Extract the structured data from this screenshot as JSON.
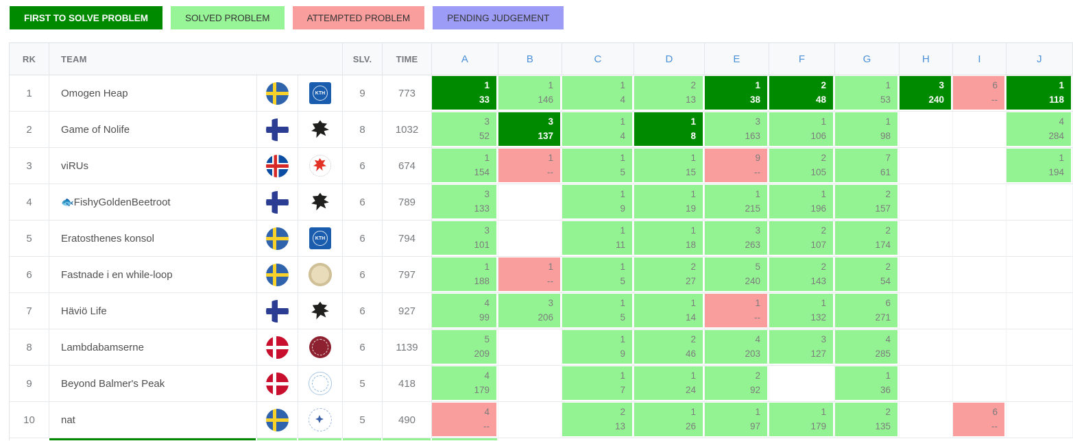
{
  "colors": {
    "first_to_solve": "#008a00",
    "solved": "#93f393",
    "attempted": "#fa9d9d",
    "pending": "#9c9cf6",
    "first_to_solve_text": "#ffffff",
    "cell_text": "#7c7c7c",
    "problem_header_text": "#4a90d9"
  },
  "legend": [
    {
      "label": "FIRST TO SOLVE PROBLEM",
      "type": "first",
      "bg": "#008a00",
      "fg": "#ffffff"
    },
    {
      "label": "SOLVED PROBLEM",
      "type": "solved",
      "bg": "#97f597",
      "fg": "#333333"
    },
    {
      "label": "ATTEMPTED PROBLEM",
      "type": "attempted",
      "bg": "#fa9d9d",
      "fg": "#333333"
    },
    {
      "label": "PENDING JUDGEMENT",
      "type": "pending",
      "bg": "#9c9cf6",
      "fg": "#333333"
    }
  ],
  "table": {
    "headers": {
      "rank": "RK",
      "team": "TEAM",
      "solved": "SLV.",
      "time": "TIME",
      "problems": [
        "A",
        "B",
        "C",
        "D",
        "E",
        "F",
        "G",
        "H",
        "I",
        "J"
      ]
    },
    "rows": [
      {
        "rank": "1",
        "team": "Omogen Heap",
        "flag": "sweden",
        "logo": "kth",
        "solved": "9",
        "time": "773",
        "cells": [
          {
            "problem": "A",
            "state": "first",
            "tries": "1",
            "time": "33"
          },
          {
            "problem": "B",
            "state": "solved",
            "tries": "1",
            "time": "146"
          },
          {
            "problem": "C",
            "state": "solved",
            "tries": "1",
            "time": "4"
          },
          {
            "problem": "D",
            "state": "solved",
            "tries": "2",
            "time": "13"
          },
          {
            "problem": "E",
            "state": "first",
            "tries": "1",
            "time": "38"
          },
          {
            "problem": "F",
            "state": "first",
            "tries": "2",
            "time": "48"
          },
          {
            "problem": "G",
            "state": "solved",
            "tries": "1",
            "time": "53"
          },
          {
            "problem": "H",
            "state": "first",
            "tries": "3",
            "time": "240"
          },
          {
            "problem": "I",
            "state": "attempted",
            "tries": "6",
            "time": "--"
          },
          {
            "problem": "J",
            "state": "first",
            "tries": "1",
            "time": "118"
          }
        ]
      },
      {
        "rank": "2",
        "team": "Game of Nolife",
        "flag": "finland",
        "logo": "black-bird",
        "solved": "8",
        "time": "1032",
        "cells": [
          {
            "problem": "A",
            "state": "solved",
            "tries": "3",
            "time": "52"
          },
          {
            "problem": "B",
            "state": "first",
            "tries": "3",
            "time": "137"
          },
          {
            "problem": "C",
            "state": "solved",
            "tries": "1",
            "time": "4"
          },
          {
            "problem": "D",
            "state": "first",
            "tries": "1",
            "time": "8"
          },
          {
            "problem": "E",
            "state": "solved",
            "tries": "3",
            "time": "163"
          },
          {
            "problem": "F",
            "state": "solved",
            "tries": "1",
            "time": "106"
          },
          {
            "problem": "G",
            "state": "solved",
            "tries": "1",
            "time": "98"
          },
          {
            "problem": "H",
            "state": "none"
          },
          {
            "problem": "I",
            "state": "none"
          },
          {
            "problem": "J",
            "state": "solved",
            "tries": "4",
            "time": "284"
          }
        ]
      },
      {
        "rank": "3",
        "team": "viRUs",
        "flag": "iceland",
        "logo": "red-seal",
        "solved": "6",
        "time": "674",
        "cells": [
          {
            "problem": "A",
            "state": "solved",
            "tries": "1",
            "time": "154"
          },
          {
            "problem": "B",
            "state": "attempted",
            "tries": "1",
            "time": "--"
          },
          {
            "problem": "C",
            "state": "solved",
            "tries": "1",
            "time": "5"
          },
          {
            "problem": "D",
            "state": "solved",
            "tries": "1",
            "time": "15"
          },
          {
            "problem": "E",
            "state": "attempted",
            "tries": "9",
            "time": "--"
          },
          {
            "problem": "F",
            "state": "solved",
            "tries": "2",
            "time": "105"
          },
          {
            "problem": "G",
            "state": "solved",
            "tries": "7",
            "time": "61"
          },
          {
            "problem": "H",
            "state": "none"
          },
          {
            "problem": "I",
            "state": "none"
          },
          {
            "problem": "J",
            "state": "solved",
            "tries": "1",
            "time": "194"
          }
        ]
      },
      {
        "rank": "4",
        "team": "🐟FishyGoldenBeetroot",
        "flag": "finland",
        "logo": "black-bird",
        "solved": "6",
        "time": "789",
        "cells": [
          {
            "problem": "A",
            "state": "solved",
            "tries": "3",
            "time": "133"
          },
          {
            "problem": "B",
            "state": "none"
          },
          {
            "problem": "C",
            "state": "solved",
            "tries": "1",
            "time": "9"
          },
          {
            "problem": "D",
            "state": "solved",
            "tries": "1",
            "time": "19"
          },
          {
            "problem": "E",
            "state": "solved",
            "tries": "1",
            "time": "215"
          },
          {
            "problem": "F",
            "state": "solved",
            "tries": "1",
            "time": "196"
          },
          {
            "problem": "G",
            "state": "solved",
            "tries": "2",
            "time": "157"
          },
          {
            "problem": "H",
            "state": "none"
          },
          {
            "problem": "I",
            "state": "none"
          },
          {
            "problem": "J",
            "state": "none"
          }
        ]
      },
      {
        "rank": "5",
        "team": "Eratosthenes konsol",
        "flag": "sweden",
        "logo": "kth",
        "solved": "6",
        "time": "794",
        "cells": [
          {
            "problem": "A",
            "state": "solved",
            "tries": "3",
            "time": "101"
          },
          {
            "problem": "B",
            "state": "none"
          },
          {
            "problem": "C",
            "state": "solved",
            "tries": "1",
            "time": "11"
          },
          {
            "problem": "D",
            "state": "solved",
            "tries": "1",
            "time": "18"
          },
          {
            "problem": "E",
            "state": "solved",
            "tries": "3",
            "time": "263"
          },
          {
            "problem": "F",
            "state": "solved",
            "tries": "2",
            "time": "107"
          },
          {
            "problem": "G",
            "state": "solved",
            "tries": "2",
            "time": "174"
          },
          {
            "problem": "H",
            "state": "none"
          },
          {
            "problem": "I",
            "state": "none"
          },
          {
            "problem": "J",
            "state": "none"
          }
        ]
      },
      {
        "rank": "6",
        "team": "Fastnade i en while-loop",
        "flag": "sweden",
        "logo": "gold-seal",
        "solved": "6",
        "time": "797",
        "cells": [
          {
            "problem": "A",
            "state": "solved",
            "tries": "1",
            "time": "188"
          },
          {
            "problem": "B",
            "state": "attempted",
            "tries": "1",
            "time": "--"
          },
          {
            "problem": "C",
            "state": "solved",
            "tries": "1",
            "time": "5"
          },
          {
            "problem": "D",
            "state": "solved",
            "tries": "2",
            "time": "27"
          },
          {
            "problem": "E",
            "state": "solved",
            "tries": "5",
            "time": "240"
          },
          {
            "problem": "F",
            "state": "solved",
            "tries": "2",
            "time": "143"
          },
          {
            "problem": "G",
            "state": "solved",
            "tries": "2",
            "time": "54"
          },
          {
            "problem": "H",
            "state": "none"
          },
          {
            "problem": "I",
            "state": "none"
          },
          {
            "problem": "J",
            "state": "none"
          }
        ]
      },
      {
        "rank": "7",
        "team": "Häviö Life",
        "flag": "finland",
        "logo": "black-bird",
        "solved": "6",
        "time": "927",
        "cells": [
          {
            "problem": "A",
            "state": "solved",
            "tries": "4",
            "time": "99"
          },
          {
            "problem": "B",
            "state": "solved",
            "tries": "3",
            "time": "206"
          },
          {
            "problem": "C",
            "state": "solved",
            "tries": "1",
            "time": "5"
          },
          {
            "problem": "D",
            "state": "solved",
            "tries": "1",
            "time": "14"
          },
          {
            "problem": "E",
            "state": "attempted",
            "tries": "1",
            "time": "--"
          },
          {
            "problem": "F",
            "state": "solved",
            "tries": "1",
            "time": "132"
          },
          {
            "problem": "G",
            "state": "solved",
            "tries": "6",
            "time": "271"
          },
          {
            "problem": "H",
            "state": "none"
          },
          {
            "problem": "I",
            "state": "none"
          },
          {
            "problem": "J",
            "state": "none"
          }
        ]
      },
      {
        "rank": "8",
        "team": "Lambdabamserne",
        "flag": "denmark",
        "logo": "darkred-seal",
        "solved": "6",
        "time": "1139",
        "cells": [
          {
            "problem": "A",
            "state": "solved",
            "tries": "5",
            "time": "209"
          },
          {
            "problem": "B",
            "state": "none"
          },
          {
            "problem": "C",
            "state": "solved",
            "tries": "1",
            "time": "9"
          },
          {
            "problem": "D",
            "state": "solved",
            "tries": "2",
            "time": "46"
          },
          {
            "problem": "E",
            "state": "solved",
            "tries": "4",
            "time": "203"
          },
          {
            "problem": "F",
            "state": "solved",
            "tries": "3",
            "time": "127"
          },
          {
            "problem": "G",
            "state": "solved",
            "tries": "4",
            "time": "285"
          },
          {
            "problem": "H",
            "state": "none"
          },
          {
            "problem": "I",
            "state": "none"
          },
          {
            "problem": "J",
            "state": "none"
          }
        ]
      },
      {
        "rank": "9",
        "team": "Beyond Balmer's Peak",
        "flag": "denmark",
        "logo": "lightblue-seal",
        "solved": "5",
        "time": "418",
        "cells": [
          {
            "problem": "A",
            "state": "solved",
            "tries": "4",
            "time": "179"
          },
          {
            "problem": "B",
            "state": "none"
          },
          {
            "problem": "C",
            "state": "solved",
            "tries": "1",
            "time": "7"
          },
          {
            "problem": "D",
            "state": "solved",
            "tries": "1",
            "time": "24"
          },
          {
            "problem": "E",
            "state": "solved",
            "tries": "2",
            "time": "92"
          },
          {
            "problem": "F",
            "state": "none"
          },
          {
            "problem": "G",
            "state": "solved",
            "tries": "1",
            "time": "36"
          },
          {
            "problem": "H",
            "state": "none"
          },
          {
            "problem": "I",
            "state": "none"
          },
          {
            "problem": "J",
            "state": "none"
          }
        ]
      },
      {
        "rank": "10",
        "team": "nat",
        "flag": "sweden",
        "logo": "blue-emblem",
        "solved": "5",
        "time": "490",
        "cells": [
          {
            "problem": "A",
            "state": "attempted",
            "tries": "4",
            "time": "--"
          },
          {
            "problem": "B",
            "state": "none"
          },
          {
            "problem": "C",
            "state": "solved",
            "tries": "2",
            "time": "13"
          },
          {
            "problem": "D",
            "state": "solved",
            "tries": "1",
            "time": "26"
          },
          {
            "problem": "E",
            "state": "solved",
            "tries": "1",
            "time": "97"
          },
          {
            "problem": "F",
            "state": "solved",
            "tries": "1",
            "time": "179"
          },
          {
            "problem": "G",
            "state": "solved",
            "tries": "2",
            "time": "135"
          },
          {
            "problem": "H",
            "state": "none"
          },
          {
            "problem": "I",
            "state": "attempted",
            "tries": "6",
            "time": "--"
          },
          {
            "problem": "J",
            "state": "none"
          }
        ]
      }
    ],
    "partial_row": {
      "cells": [
        {
          "problem": "A",
          "state": "none"
        },
        {
          "problem": "B",
          "state": "first"
        },
        {
          "problem": "C",
          "state": "solved"
        },
        {
          "problem": "D",
          "state": "solved"
        },
        {
          "problem": "E",
          "state": "solved"
        },
        {
          "problem": "F",
          "state": "solved"
        },
        {
          "problem": "G",
          "state": "solved"
        },
        {
          "problem": "H",
          "state": "none"
        },
        {
          "problem": "I",
          "state": "none"
        },
        {
          "problem": "J",
          "state": "none"
        }
      ]
    }
  }
}
